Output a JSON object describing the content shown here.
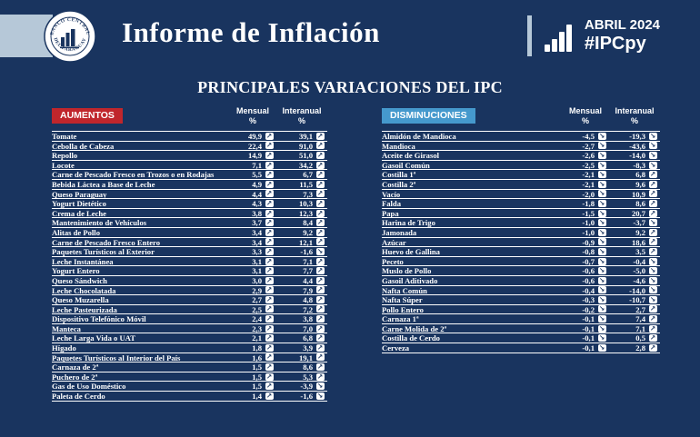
{
  "header": {
    "title": "Informe de Inflación",
    "logo_text_top": "BANCO CENTRAL",
    "logo_text_bottom": "DEL PARAGUAY",
    "period": "ABRIL 2024",
    "hashtag": "#IPCpy"
  },
  "page_title": "PRINCIPALES VARIACIONES DEL IPC",
  "columns": {
    "monthly": "Mensual",
    "yearly": "Interanual",
    "pct": "%"
  },
  "icons": {
    "up": "↗",
    "down": "↘"
  },
  "colors": {
    "background": "#19345f",
    "light_band": "#b6c8d8",
    "aumentos_badge": "#c0262c",
    "disminuciones_badge": "#4599cd",
    "text": "#ffffff"
  },
  "chart_data": [
    {
      "type": "table",
      "title": "AUMENTOS",
      "badge_color": "#c0262c",
      "columns": [
        "Mensual %",
        "Interanual %"
      ],
      "rows": [
        {
          "item": "Tomate",
          "mensual": "49,9",
          "mensual_dir": "up",
          "interanual": "39,1",
          "interanual_dir": "up"
        },
        {
          "item": "Cebolla de Cabeza",
          "mensual": "22,4",
          "mensual_dir": "up",
          "interanual": "91,0",
          "interanual_dir": "up"
        },
        {
          "item": "Repollo",
          "mensual": "14,9",
          "mensual_dir": "up",
          "interanual": "51,0",
          "interanual_dir": "up"
        },
        {
          "item": "Locote",
          "mensual": "7,1",
          "mensual_dir": "up",
          "interanual": "34,2",
          "interanual_dir": "up"
        },
        {
          "item": "Carne de Pescado Fresco en Trozos o en Rodajas",
          "mensual": "5,5",
          "mensual_dir": "up",
          "interanual": "6,7",
          "interanual_dir": "up"
        },
        {
          "item": "Bebida Láctea a Base de Leche",
          "mensual": "4,9",
          "mensual_dir": "up",
          "interanual": "11,5",
          "interanual_dir": "up"
        },
        {
          "item": "Queso Paraguay",
          "mensual": "4,4",
          "mensual_dir": "up",
          "interanual": "7,3",
          "interanual_dir": "up"
        },
        {
          "item": "Yogurt Dietético",
          "mensual": "4,3",
          "mensual_dir": "up",
          "interanual": "10,3",
          "interanual_dir": "up"
        },
        {
          "item": "Crema de Leche",
          "mensual": "3,8",
          "mensual_dir": "up",
          "interanual": "12,3",
          "interanual_dir": "up"
        },
        {
          "item": "Mantenimiento de Vehículos",
          "mensual": "3,7",
          "mensual_dir": "up",
          "interanual": "8,4",
          "interanual_dir": "up"
        },
        {
          "item": "Alitas de Pollo",
          "mensual": "3,4",
          "mensual_dir": "up",
          "interanual": "9,2",
          "interanual_dir": "up"
        },
        {
          "item": "Carne de Pescado Fresco Entero",
          "mensual": "3,4",
          "mensual_dir": "up",
          "interanual": "12,1",
          "interanual_dir": "up"
        },
        {
          "item": "Paquetes Turísticos al Exterior",
          "mensual": "3,3",
          "mensual_dir": "up",
          "interanual": "-1,6",
          "interanual_dir": "down"
        },
        {
          "item": "Leche Instantánea",
          "mensual": "3,1",
          "mensual_dir": "up",
          "interanual": "7,1",
          "interanual_dir": "up"
        },
        {
          "item": "Yogurt Entero",
          "mensual": "3,1",
          "mensual_dir": "up",
          "interanual": "7,7",
          "interanual_dir": "up"
        },
        {
          "item": "Queso Sándwich",
          "mensual": "3,0",
          "mensual_dir": "up",
          "interanual": "4,4",
          "interanual_dir": "up"
        },
        {
          "item": "Leche Chocolatada",
          "mensual": "2,9",
          "mensual_dir": "up",
          "interanual": "7,9",
          "interanual_dir": "up"
        },
        {
          "item": "Queso Muzarella",
          "mensual": "2,7",
          "mensual_dir": "up",
          "interanual": "4,8",
          "interanual_dir": "up"
        },
        {
          "item": "Leche Pasteurizada",
          "mensual": "2,5",
          "mensual_dir": "up",
          "interanual": "7,2",
          "interanual_dir": "up"
        },
        {
          "item": "Dispositivo Telefónico Móvil",
          "mensual": "2,4",
          "mensual_dir": "up",
          "interanual": "3,8",
          "interanual_dir": "up"
        },
        {
          "item": "Manteca",
          "mensual": "2,3",
          "mensual_dir": "up",
          "interanual": "7,0",
          "interanual_dir": "up"
        },
        {
          "item": "Leche Larga Vida o UAT",
          "mensual": "2,1",
          "mensual_dir": "up",
          "interanual": "6,8",
          "interanual_dir": "up"
        },
        {
          "item": "Hígado",
          "mensual": "1,8",
          "mensual_dir": "up",
          "interanual": "3,9",
          "interanual_dir": "up"
        },
        {
          "item": "Paquetes Turísticos al Interior del País",
          "mensual": "1,6",
          "mensual_dir": "up",
          "interanual": "19,1",
          "interanual_dir": "up"
        },
        {
          "item": "Carnaza de 2ª",
          "mensual": "1,5",
          "mensual_dir": "up",
          "interanual": "8,6",
          "interanual_dir": "up"
        },
        {
          "item": "Puchero de 2ª",
          "mensual": "1,5",
          "mensual_dir": "up",
          "interanual": "5,3",
          "interanual_dir": "up"
        },
        {
          "item": "Gas de Uso Doméstico",
          "mensual": "1,5",
          "mensual_dir": "up",
          "interanual": "-3,9",
          "interanual_dir": "down"
        },
        {
          "item": "Paleta de Cerdo",
          "mensual": "1,4",
          "mensual_dir": "up",
          "interanual": "-1,6",
          "interanual_dir": "down"
        }
      ]
    },
    {
      "type": "table",
      "title": "DISMINUCIONES",
      "badge_color": "#4599cd",
      "columns": [
        "Mensual %",
        "Interanual %"
      ],
      "rows": [
        {
          "item": "Almidón de Mandioca",
          "mensual": "-4,5",
          "mensual_dir": "down",
          "interanual": "-19,3",
          "interanual_dir": "down"
        },
        {
          "item": "Mandioca",
          "mensual": "-2,7",
          "mensual_dir": "down",
          "interanual": "-43,6",
          "interanual_dir": "down"
        },
        {
          "item": "Aceite de Girasol",
          "mensual": "-2,6",
          "mensual_dir": "down",
          "interanual": "-14,0",
          "interanual_dir": "down"
        },
        {
          "item": "Gasoil Común",
          "mensual": "-2,5",
          "mensual_dir": "down",
          "interanual": "-8,3",
          "interanual_dir": "down"
        },
        {
          "item": "Costilla 1ª",
          "mensual": "-2,1",
          "mensual_dir": "down",
          "interanual": "6,8",
          "interanual_dir": "up"
        },
        {
          "item": "Costilla 2ª",
          "mensual": "-2,1",
          "mensual_dir": "down",
          "interanual": "9,6",
          "interanual_dir": "up"
        },
        {
          "item": "Vacío",
          "mensual": "-2,0",
          "mensual_dir": "down",
          "interanual": "10,9",
          "interanual_dir": "up"
        },
        {
          "item": "Falda",
          "mensual": "-1,8",
          "mensual_dir": "down",
          "interanual": "8,6",
          "interanual_dir": "up"
        },
        {
          "item": "Papa",
          "mensual": "-1,5",
          "mensual_dir": "down",
          "interanual": "20,7",
          "interanual_dir": "up"
        },
        {
          "item": "Harina de Trigo",
          "mensual": "-1,0",
          "mensual_dir": "down",
          "interanual": "-3,7",
          "interanual_dir": "down"
        },
        {
          "item": "Jamonada",
          "mensual": "-1,0",
          "mensual_dir": "down",
          "interanual": "9,2",
          "interanual_dir": "up"
        },
        {
          "item": "Azúcar",
          "mensual": "-0,9",
          "mensual_dir": "down",
          "interanual": "18,6",
          "interanual_dir": "up"
        },
        {
          "item": "Huevo de Gallina",
          "mensual": "-0,8",
          "mensual_dir": "down",
          "interanual": "3,5",
          "interanual_dir": "up"
        },
        {
          "item": "Peceto",
          "mensual": "-0,7",
          "mensual_dir": "down",
          "interanual": "-0,4",
          "interanual_dir": "down"
        },
        {
          "item": "Muslo de Pollo",
          "mensual": "-0,6",
          "mensual_dir": "down",
          "interanual": "-5,0",
          "interanual_dir": "down"
        },
        {
          "item": "Gasoil Aditivado",
          "mensual": "-0,6",
          "mensual_dir": "down",
          "interanual": "-4,6",
          "interanual_dir": "down"
        },
        {
          "item": "Nafta Común",
          "mensual": "-0,4",
          "mensual_dir": "down",
          "interanual": "-14,0",
          "interanual_dir": "down"
        },
        {
          "item": "Nafta Súper",
          "mensual": "-0,3",
          "mensual_dir": "down",
          "interanual": "-10,7",
          "interanual_dir": "down"
        },
        {
          "item": "Pollo Entero",
          "mensual": "-0,2",
          "mensual_dir": "down",
          "interanual": "2,7",
          "interanual_dir": "up"
        },
        {
          "item": "Carnaza 1ª",
          "mensual": "-0,1",
          "mensual_dir": "down",
          "interanual": "7,4",
          "interanual_dir": "up"
        },
        {
          "item": "Carne Molida de 2ª",
          "mensual": "-0,1",
          "mensual_dir": "down",
          "interanual": "7,1",
          "interanual_dir": "up"
        },
        {
          "item": "Costilla de Cerdo",
          "mensual": "-0,1",
          "mensual_dir": "down",
          "interanual": "0,5",
          "interanual_dir": "up"
        },
        {
          "item": "Cerveza",
          "mensual": "-0,1",
          "mensual_dir": "down",
          "interanual": "2,8",
          "interanual_dir": "up"
        }
      ]
    }
  ]
}
